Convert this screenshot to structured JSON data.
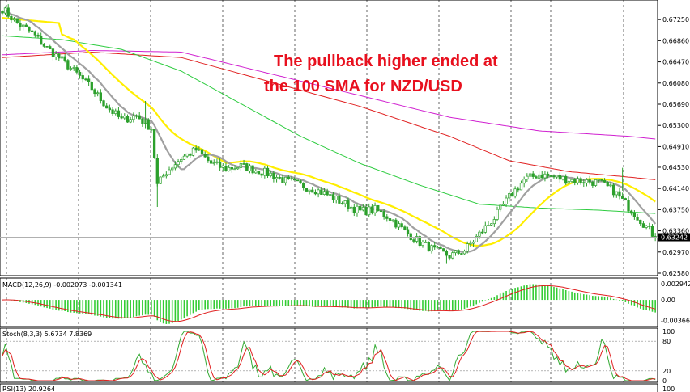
{
  "chart_data": {
    "type": "line",
    "instrument": "NZD/USD",
    "annotation": [
      "The pullback higher ended at",
      "the 100 SMA for NZD/USD"
    ],
    "colors": {
      "up_candle": "#2ca02c",
      "down_candle": "#2ca02c",
      "sma_fast": "#a0a0a0",
      "sma_50": "#ffee00",
      "sma_100": "#2ecc40",
      "sma_200": "#e02020",
      "sma_240": "#d020d0",
      "annotation": "#e8101e",
      "grid": "#000000",
      "macd_hist": "#33cc33",
      "macd_signal": "#e02020",
      "stoch_main": "#33aa33",
      "stoch_signal": "#e02020"
    },
    "price_panel": {
      "ylim": [
        0.6258,
        0.6755
      ],
      "ticks": [
        "0.67250",
        "0.66860",
        "0.66470",
        "0.66080",
        "0.65690",
        "0.65300",
        "0.64910",
        "0.64530",
        "0.64140",
        "0.63750",
        "0.63360",
        "0.62970",
        "0.62580"
      ],
      "tick_values": [
        0.6725,
        0.6686,
        0.6647,
        0.6608,
        0.6569,
        0.653,
        0.6491,
        0.6453,
        0.6414,
        0.6375,
        0.6336,
        0.6297,
        0.6258
      ],
      "current_price_label": "0.63242",
      "current_price": 0.63242,
      "close_anchors": [
        [
          0,
          0.6745
        ],
        [
          5,
          0.6718
        ],
        [
          10,
          0.67
        ],
        [
          15,
          0.6672
        ],
        [
          20,
          0.665
        ],
        [
          25,
          0.6625
        ],
        [
          30,
          0.6598
        ],
        [
          35,
          0.6565
        ],
        [
          40,
          0.654
        ],
        [
          45,
          0.6548
        ],
        [
          50,
          0.6525
        ],
        [
          52,
          0.642
        ],
        [
          55,
          0.6445
        ],
        [
          60,
          0.647
        ],
        [
          65,
          0.6485
        ],
        [
          70,
          0.646
        ],
        [
          75,
          0.645
        ],
        [
          80,
          0.6455
        ],
        [
          85,
          0.6448
        ],
        [
          90,
          0.644
        ],
        [
          95,
          0.6428
        ],
        [
          100,
          0.642
        ],
        [
          105,
          0.6412
        ],
        [
          110,
          0.64
        ],
        [
          115,
          0.6385
        ],
        [
          120,
          0.6372
        ],
        [
          125,
          0.6375
        ],
        [
          130,
          0.636
        ],
        [
          135,
          0.6335
        ],
        [
          140,
          0.6315
        ],
        [
          145,
          0.63
        ],
        [
          150,
          0.629
        ],
        [
          155,
          0.63
        ],
        [
          160,
          0.633
        ],
        [
          165,
          0.636
        ],
        [
          170,
          0.6398
        ],
        [
          175,
          0.643
        ],
        [
          180,
          0.644
        ],
        [
          185,
          0.6435
        ],
        [
          190,
          0.643
        ],
        [
          195,
          0.6428
        ],
        [
          200,
          0.6425
        ],
        [
          205,
          0.641
        ],
        [
          210,
          0.638
        ],
        [
          215,
          0.635
        ],
        [
          219,
          0.63242
        ]
      ],
      "sma_100_anchors": [
        [
          0,
          0.6695
        ],
        [
          20,
          0.6688
        ],
        [
          40,
          0.667
        ],
        [
          60,
          0.663
        ],
        [
          80,
          0.657
        ],
        [
          100,
          0.651
        ],
        [
          120,
          0.646
        ],
        [
          140,
          0.642
        ],
        [
          160,
          0.6385
        ],
        [
          180,
          0.6378
        ],
        [
          200,
          0.6374
        ],
        [
          219,
          0.6368
        ]
      ],
      "sma_200_anchors": [
        [
          0,
          0.6655
        ],
        [
          30,
          0.6665
        ],
        [
          60,
          0.6655
        ],
        [
          90,
          0.661
        ],
        [
          120,
          0.6565
        ],
        [
          150,
          0.651
        ],
        [
          170,
          0.6465
        ],
        [
          190,
          0.6445
        ],
        [
          210,
          0.6435
        ],
        [
          219,
          0.643
        ]
      ],
      "sma_240_anchors": [
        [
          0,
          0.666
        ],
        [
          30,
          0.6668
        ],
        [
          60,
          0.6665
        ],
        [
          90,
          0.6625
        ],
        [
          120,
          0.6585
        ],
        [
          150,
          0.6545
        ],
        [
          180,
          0.652
        ],
        [
          210,
          0.651
        ],
        [
          219,
          0.6505
        ]
      ]
    },
    "macd_panel": {
      "label": "MACD(12,26,9) -0.002073 -0.001341",
      "ylim": [
        -0.0045,
        0.0035
      ],
      "ticks": [
        "0.002942",
        "0.00",
        "-0.003666"
      ],
      "tick_values": [
        0.002942,
        0.0,
        -0.003666
      ]
    },
    "stoch_panel": {
      "label": "Stoch(8,3,3) 5.6734 7.8369",
      "ylim": [
        0,
        100
      ],
      "ticks": [
        "100",
        "80",
        "20",
        "0"
      ],
      "tick_values": [
        100,
        80,
        20,
        0
      ]
    },
    "rsi_panel": {
      "label": "RSI(13) 20.9264",
      "ticks": [
        "100"
      ]
    },
    "grid": true
  }
}
